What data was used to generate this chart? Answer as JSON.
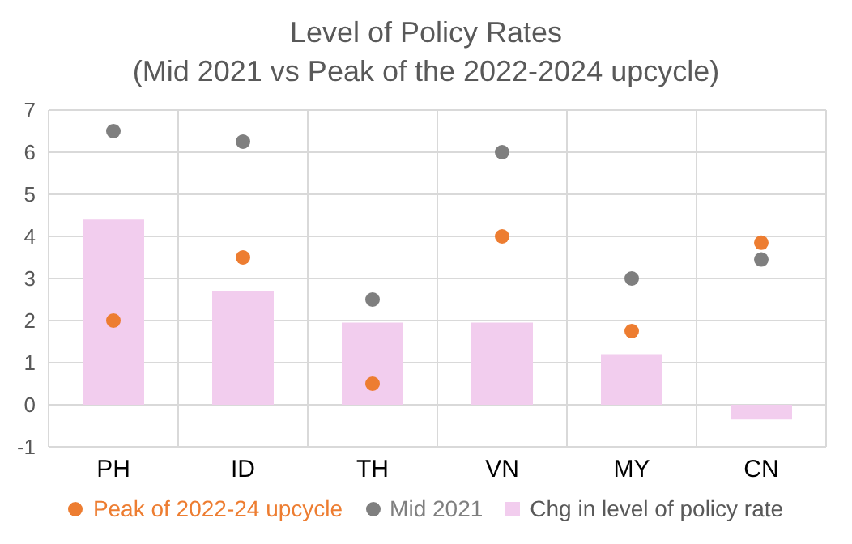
{
  "chart_data": {
    "type": "bar",
    "title": "Level of Policy Rates",
    "subtitle": "(Mid 2021 vs Peak of the 2022-2024 upcycle)",
    "categories": [
      "PH",
      "ID",
      "TH",
      "VN",
      "MY",
      "CN"
    ],
    "series": [
      {
        "name": "Peak of 2022-24 upcycle",
        "type": "scatter",
        "color": "#ed7d31",
        "values": [
          2.0,
          3.5,
          0.5,
          4.0,
          1.75,
          3.85
        ]
      },
      {
        "name": "Mid 2021",
        "type": "scatter",
        "color": "#7f7f7f",
        "values": [
          6.5,
          6.25,
          2.5,
          6.0,
          3.0,
          3.45
        ]
      },
      {
        "name": "Chg in level of policy rate",
        "color": "#f2cdee",
        "values": [
          4.4,
          2.7,
          1.95,
          1.95,
          1.2,
          -0.35
        ]
      }
    ],
    "ylim": [
      -1,
      7
    ],
    "yticks": [
      -1,
      0,
      1,
      2,
      3,
      4,
      5,
      6,
      7
    ],
    "grid": true,
    "legend": "bottom",
    "marker": "circle"
  }
}
